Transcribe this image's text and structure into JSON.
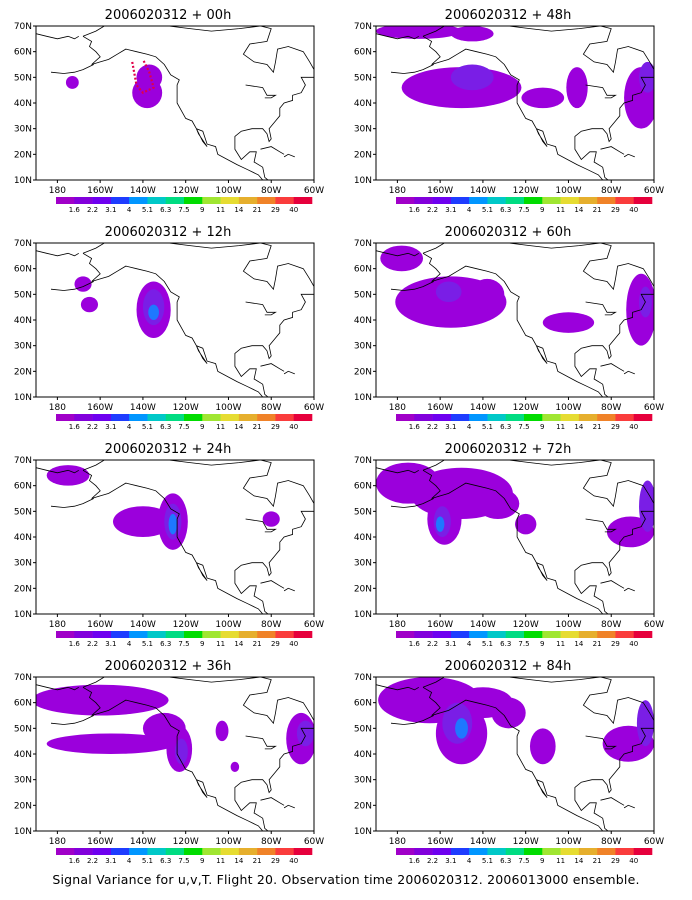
{
  "footer": "Signal Variance for u,v,T. Flight 20. Observation time 2006020312. 2006013000 ensemble.",
  "colorbar": {
    "labels": [
      "1.6",
      "2.2",
      "3.1",
      "4",
      "5.1",
      "6.3",
      "7.5",
      "9",
      "11",
      "14",
      "21",
      "29",
      "40"
    ],
    "colors": [
      "#a000c8",
      "#8200dc",
      "#6e00f0",
      "#1e3cff",
      "#0096ff",
      "#00c8c8",
      "#00dc82",
      "#00dc00",
      "#a0e632",
      "#e6dc32",
      "#e6af2d",
      "#f08228",
      "#fa3c3c",
      "#e6003c"
    ]
  },
  "axes": {
    "x_ticks": [
      "180",
      "160W",
      "140W",
      "120W",
      "100W",
      "80W",
      "60W"
    ],
    "y_ticks": [
      "10N",
      "20N",
      "30N",
      "40N",
      "50N",
      "60N",
      "70N"
    ],
    "lon_range": [
      -190,
      -60
    ],
    "lat_range": [
      10,
      70
    ]
  },
  "chart_data": [
    {
      "type": "heatmap",
      "title": "2006020312 + 00h",
      "blobs": [
        {
          "lon": -173,
          "lat": 48,
          "rlon": 3,
          "rlat": 2.5,
          "level": 1
        },
        {
          "lon": -138,
          "lat": 44,
          "rlon": 7,
          "rlat": 6,
          "level": 1
        },
        {
          "lon": -137,
          "lat": 50,
          "rlon": 6,
          "rlat": 5,
          "level": 1
        }
      ]
    },
    {
      "type": "heatmap",
      "title": "2006020312 + 12h",
      "blobs": [
        {
          "lon": -168,
          "lat": 54,
          "rlon": 4,
          "rlat": 3,
          "level": 1
        },
        {
          "lon": -165,
          "lat": 46,
          "rlon": 4,
          "rlat": 3,
          "level": 1
        },
        {
          "lon": -135,
          "lat": 44,
          "rlon": 8,
          "rlat": 11,
          "level": 1
        },
        {
          "lon": -135,
          "lat": 45,
          "rlon": 5,
          "rlat": 7,
          "level": 2
        },
        {
          "lon": -135,
          "lat": 43,
          "rlon": 2.5,
          "rlat": 3,
          "level": 3
        }
      ]
    },
    {
      "type": "heatmap",
      "title": "2006020312 + 24h",
      "blobs": [
        {
          "lon": -175,
          "lat": 64,
          "rlon": 10,
          "rlat": 4,
          "level": 1
        },
        {
          "lon": -140,
          "lat": 46,
          "rlon": 14,
          "rlat": 6,
          "level": 1
        },
        {
          "lon": -126,
          "lat": 46,
          "rlon": 7,
          "rlat": 11,
          "level": 1
        },
        {
          "lon": -126,
          "lat": 46,
          "rlon": 4,
          "rlat": 7,
          "level": 2
        },
        {
          "lon": -126,
          "lat": 45,
          "rlon": 2,
          "rlat": 4,
          "level": 3
        },
        {
          "lon": -80,
          "lat": 47,
          "rlon": 4,
          "rlat": 3,
          "level": 1
        }
      ]
    },
    {
      "type": "heatmap",
      "title": "2006020312 + 36h",
      "blobs": [
        {
          "lon": -160,
          "lat": 61,
          "rlon": 32,
          "rlat": 6,
          "level": 1
        },
        {
          "lon": -155,
          "lat": 44,
          "rlon": 30,
          "rlat": 4,
          "level": 1
        },
        {
          "lon": -130,
          "lat": 50,
          "rlon": 10,
          "rlat": 6,
          "level": 1
        },
        {
          "lon": -123,
          "lat": 42,
          "rlon": 6,
          "rlat": 9,
          "level": 1
        },
        {
          "lon": -122,
          "lat": 41,
          "rlon": 3,
          "rlat": 5,
          "level": 2
        },
        {
          "lon": -103,
          "lat": 49,
          "rlon": 3,
          "rlat": 4,
          "level": 1
        },
        {
          "lon": -97,
          "lat": 35,
          "rlon": 2,
          "rlat": 2,
          "level": 1
        },
        {
          "lon": -66,
          "lat": 46,
          "rlon": 7,
          "rlat": 10,
          "level": 1
        },
        {
          "lon": -64,
          "lat": 48,
          "rlon": 4,
          "rlat": 5,
          "level": 2
        }
      ]
    },
    {
      "type": "heatmap",
      "title": "2006020312 + 48h",
      "blobs": [
        {
          "lon": -170,
          "lat": 68,
          "rlon": 20,
          "rlat": 3,
          "level": 1
        },
        {
          "lon": -145,
          "lat": 67,
          "rlon": 10,
          "rlat": 3,
          "level": 1
        },
        {
          "lon": -150,
          "lat": 46,
          "rlon": 28,
          "rlat": 8,
          "level": 1
        },
        {
          "lon": -145,
          "lat": 50,
          "rlon": 10,
          "rlat": 5,
          "level": 2
        },
        {
          "lon": -112,
          "lat": 42,
          "rlon": 10,
          "rlat": 4,
          "level": 1
        },
        {
          "lon": -96,
          "lat": 46,
          "rlon": 5,
          "rlat": 8,
          "level": 1
        },
        {
          "lon": -66,
          "lat": 42,
          "rlon": 8,
          "rlat": 12,
          "level": 1
        },
        {
          "lon": -63,
          "lat": 50,
          "rlon": 4,
          "rlat": 6,
          "level": 2
        }
      ]
    },
    {
      "type": "heatmap",
      "title": "2006020312 + 60h",
      "blobs": [
        {
          "lon": -178,
          "lat": 64,
          "rlon": 10,
          "rlat": 5,
          "level": 1
        },
        {
          "lon": -155,
          "lat": 47,
          "rlon": 26,
          "rlat": 10,
          "level": 1
        },
        {
          "lon": -156,
          "lat": 51,
          "rlon": 6,
          "rlat": 4,
          "level": 2
        },
        {
          "lon": -138,
          "lat": 50,
          "rlon": 8,
          "rlat": 6,
          "level": 1
        },
        {
          "lon": -100,
          "lat": 39,
          "rlon": 12,
          "rlat": 4,
          "level": 1
        },
        {
          "lon": -66,
          "lat": 44,
          "rlon": 7,
          "rlat": 14,
          "level": 1
        },
        {
          "lon": -64,
          "lat": 47,
          "rlon": 3,
          "rlat": 6,
          "level": 2
        }
      ]
    },
    {
      "type": "heatmap",
      "title": "2006020312 + 72h",
      "blobs": [
        {
          "lon": -175,
          "lat": 61,
          "rlon": 15,
          "rlat": 8,
          "level": 1
        },
        {
          "lon": -150,
          "lat": 57,
          "rlon": 24,
          "rlat": 10,
          "level": 1
        },
        {
          "lon": -158,
          "lat": 47,
          "rlon": 8,
          "rlat": 10,
          "level": 1
        },
        {
          "lon": -159,
          "lat": 46,
          "rlon": 4,
          "rlat": 6,
          "level": 2
        },
        {
          "lon": -160,
          "lat": 45,
          "rlon": 2,
          "rlat": 3,
          "level": 3
        },
        {
          "lon": -133,
          "lat": 53,
          "rlon": 10,
          "rlat": 6,
          "level": 1
        },
        {
          "lon": -120,
          "lat": 45,
          "rlon": 5,
          "rlat": 4,
          "level": 1
        },
        {
          "lon": -71,
          "lat": 42,
          "rlon": 11,
          "rlat": 6,
          "level": 1
        },
        {
          "lon": -63,
          "lat": 52,
          "rlon": 4,
          "rlat": 10,
          "level": 2
        }
      ]
    },
    {
      "type": "heatmap",
      "title": "2006020312 + 84h",
      "blobs": [
        {
          "lon": -165,
          "lat": 61,
          "rlon": 24,
          "rlat": 9,
          "level": 1
        },
        {
          "lon": -140,
          "lat": 60,
          "rlon": 14,
          "rlat": 6,
          "level": 1
        },
        {
          "lon": -150,
          "lat": 48,
          "rlon": 12,
          "rlat": 12,
          "level": 1
        },
        {
          "lon": -152,
          "lat": 52,
          "rlon": 7,
          "rlat": 8,
          "level": 2
        },
        {
          "lon": -150,
          "lat": 50,
          "rlon": 3,
          "rlat": 4,
          "level": 3
        },
        {
          "lon": -128,
          "lat": 56,
          "rlon": 8,
          "rlat": 6,
          "level": 1
        },
        {
          "lon": -112,
          "lat": 43,
          "rlon": 6,
          "rlat": 7,
          "level": 1
        },
        {
          "lon": -72,
          "lat": 44,
          "rlon": 12,
          "rlat": 7,
          "level": 1
        },
        {
          "lon": -64,
          "lat": 52,
          "rlon": 4,
          "rlat": 9,
          "level": 2
        }
      ]
    }
  ]
}
